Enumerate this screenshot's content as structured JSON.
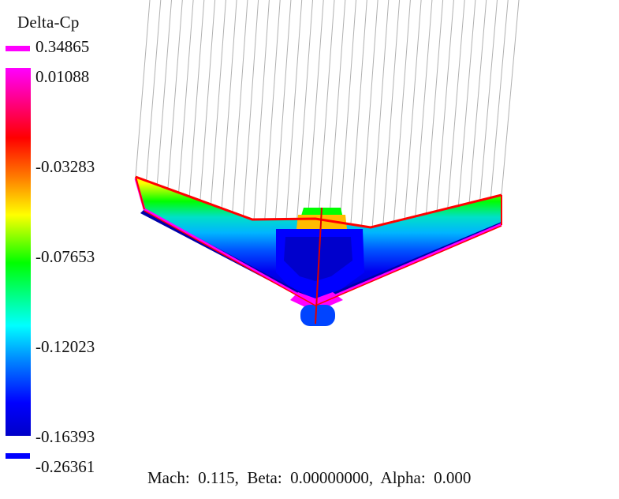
{
  "legend": {
    "title": "Delta-Cp",
    "max_value": "0.34865",
    "min_value": "-0.26361",
    "top_color": "#ff00ff",
    "bottom_color": "#0000ff",
    "ticks": [
      "0.01088",
      "-0.03283",
      "-0.07653",
      "-0.12023",
      "-0.16393"
    ],
    "scale_colors": [
      "#ff00ff",
      "#ff0000",
      "#ff8000",
      "#ffff00",
      "#00ff00",
      "#00ffff",
      "#0080ff",
      "#0000ff"
    ]
  },
  "status": {
    "flow_conditions": "Mach:  0.115,  Beta:  0.00000000,  Alpha:  0.000"
  },
  "model": {
    "name": "flying-wing",
    "wake_line_color": "#b0b0b0",
    "outline_color": "#ff0000"
  }
}
